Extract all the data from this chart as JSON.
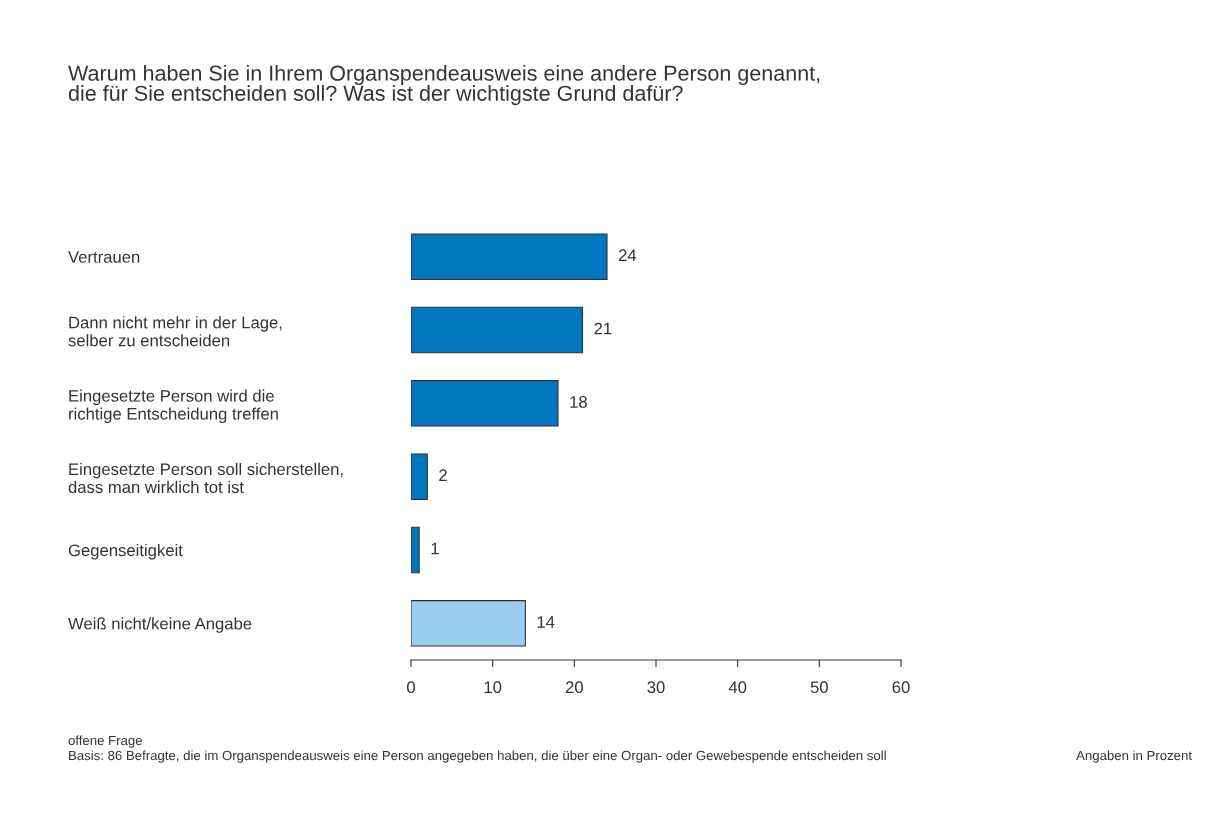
{
  "chart_data": {
    "type": "bar",
    "orientation": "horizontal",
    "title": "Warum haben Sie in Ihrem Organspendeausweis eine andere Person genannt,\ndie für Sie entscheiden soll? Was ist der wichtigste Grund dafür?",
    "categories": [
      "Vertrauen",
      "Dann nicht mehr in der Lage,\nselber zu entscheiden",
      "Eingesetzte Person wird die\nrichtige Entscheidung treffen",
      "Eingesetzte Person soll sicherstellen,\ndass man wirklich tot ist",
      "Gegenseitigkeit",
      "Weiß nicht/keine Angabe"
    ],
    "values": [
      24,
      21,
      18,
      2,
      1,
      14
    ],
    "colors": [
      "#0077c0",
      "#0077c0",
      "#0077c0",
      "#0077c0",
      "#0077c0",
      "#99cdf2"
    ],
    "xlim": [
      0,
      60
    ],
    "xticks": [
      0,
      10,
      20,
      30,
      40,
      50,
      60
    ],
    "data_labels": true,
    "grid": false,
    "legend": false,
    "annotations": [
      "offene Frage",
      "Basis: 86 Befragte, die im Organspendeausweis eine Person angegeben haben, die über eine Organ- oder Gewebespende entscheiden soll",
      "Angaben in Prozent"
    ]
  }
}
